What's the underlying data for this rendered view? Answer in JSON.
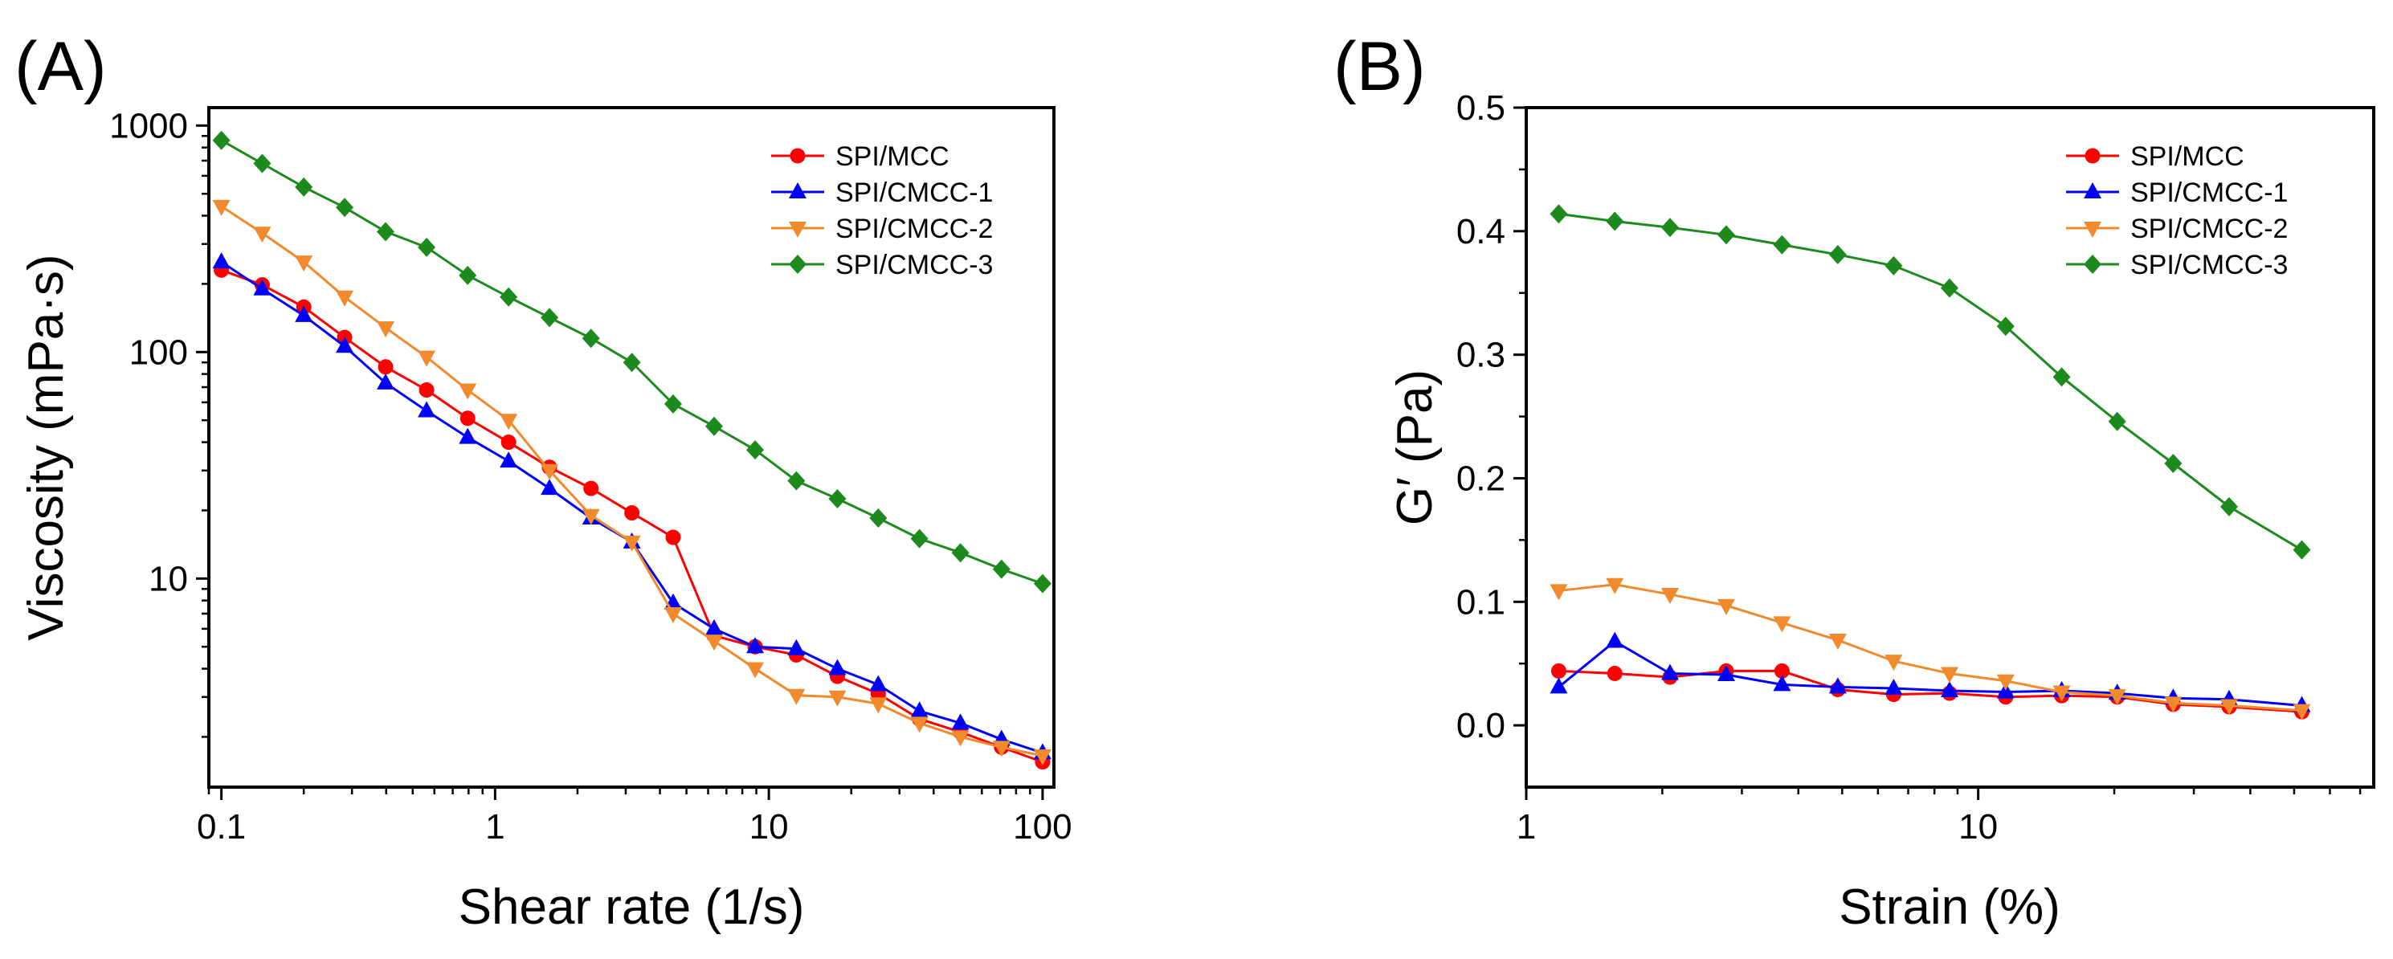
{
  "chart_data": [
    {
      "panel": "(A)",
      "type": "line",
      "title": "",
      "xlabel": "Shear rate (1/s)",
      "ylabel": "Viscosity (mPa·s)",
      "xscale": "log",
      "yscale": "log",
      "xlim": [
        0.09,
        110
      ],
      "ylim": [
        1.2,
        1200
      ],
      "xticks": [
        0.1,
        1,
        10,
        100
      ],
      "xtick_labels": [
        "0.1",
        "1",
        "10",
        "100"
      ],
      "yticks": [
        10,
        100,
        1000
      ],
      "ytick_labels": [
        "10",
        "100",
        "1000"
      ],
      "legend_position": "top-right",
      "x": [
        0.1,
        0.141,
        0.2,
        0.282,
        0.398,
        0.562,
        0.794,
        1.12,
        1.58,
        2.24,
        3.16,
        4.47,
        6.31,
        8.91,
        12.6,
        17.8,
        25.1,
        35.5,
        50.1,
        70.8,
        100
      ],
      "series": [
        {
          "name": "SPI/MCC",
          "color": "#ff0000",
          "marker": "circle",
          "values": [
            230,
            198,
            158,
            116,
            86,
            68,
            51,
            40,
            31,
            25,
            19.5,
            15.2,
            5.6,
            5.0,
            4.6,
            3.7,
            3.1,
            2.4,
            2.1,
            1.8,
            1.55
          ]
        },
        {
          "name": "SPI/CMCC-1",
          "color": "#0000ff",
          "marker": "triangle-up",
          "values": [
            250,
            190,
            145,
            106,
            73,
            55,
            42,
            33,
            25,
            18.5,
            14.5,
            7.8,
            6.0,
            5.0,
            4.9,
            4.0,
            3.4,
            2.6,
            2.3,
            1.95,
            1.7
          ]
        },
        {
          "name": "SPI/CMCC-2",
          "color": "#f08a2c",
          "marker": "triangle-down",
          "values": [
            440,
            335,
            250,
            175,
            128,
            95,
            68,
            50,
            30,
            19,
            14.5,
            7.0,
            5.3,
            4.0,
            3.05,
            3.0,
            2.8,
            2.3,
            2.0,
            1.8,
            1.65
          ]
        },
        {
          "name": "SPI/CMCC-3",
          "color": "#1d8a1d",
          "marker": "diamond",
          "values": [
            860,
            680,
            535,
            435,
            340,
            290,
            218,
            175,
            142,
            115,
            90,
            59,
            47,
            37,
            27,
            22.5,
            18.5,
            15,
            13,
            11,
            9.5
          ]
        }
      ]
    },
    {
      "panel": "(B)",
      "type": "line",
      "title": "",
      "xlabel": "Strain (%)",
      "ylabel": "G′ (Pa)",
      "xscale": "log",
      "yscale": "linear",
      "xlim": [
        1,
        75
      ],
      "ylim": [
        -0.05,
        0.5
      ],
      "xticks": [
        1,
        10
      ],
      "xtick_labels": [
        "1",
        "10"
      ],
      "yticks": [
        0,
        0.1,
        0.2,
        0.3,
        0.4,
        0.5
      ],
      "ytick_labels": [
        "0.0",
        "0.1",
        "0.2",
        "0.3",
        "0.4",
        "0.5"
      ],
      "legend_position": "top-right",
      "x": [
        1.18,
        1.57,
        2.08,
        2.77,
        3.68,
        4.89,
        6.5,
        8.64,
        11.5,
        15.3,
        20.3,
        27.0,
        35.9,
        52.0
      ],
      "series": [
        {
          "name": "SPI/MCC",
          "color": "#ff0000",
          "marker": "circle",
          "values": [
            0.044,
            0.042,
            0.039,
            0.044,
            0.044,
            0.029,
            0.025,
            0.026,
            0.023,
            0.024,
            0.023,
            0.017,
            0.015,
            0.011
          ]
        },
        {
          "name": "SPI/CMCC-1",
          "color": "#0000ff",
          "marker": "triangle-up",
          "values": [
            0.031,
            0.068,
            0.042,
            0.041,
            0.033,
            0.031,
            0.03,
            0.028,
            0.027,
            0.028,
            0.026,
            0.022,
            0.021,
            0.016
          ]
        },
        {
          "name": "SPI/CMCC-2",
          "color": "#f08a2c",
          "marker": "triangle-down",
          "values": [
            0.109,
            0.114,
            0.106,
            0.097,
            0.083,
            0.069,
            0.052,
            0.042,
            0.036,
            0.027,
            0.024,
            0.018,
            0.016,
            0.012
          ]
        },
        {
          "name": "SPI/CMCC-3",
          "color": "#1d8a1d",
          "marker": "diamond",
          "values": [
            0.414,
            0.408,
            0.403,
            0.397,
            0.389,
            0.381,
            0.372,
            0.354,
            0.323,
            0.282,
            0.246,
            0.212,
            0.177,
            0.142
          ]
        }
      ]
    }
  ]
}
